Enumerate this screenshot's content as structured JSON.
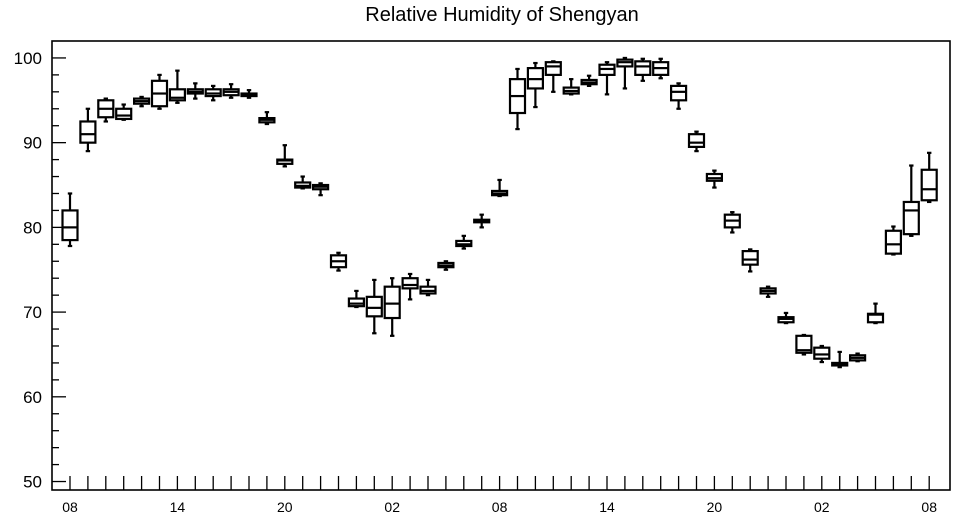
{
  "chart_data": {
    "type": "box",
    "title": "Relative Humidity of Shengyan",
    "xlabel": "",
    "ylabel": "",
    "ylim": [
      49,
      102
    ],
    "yticks": [
      50,
      60,
      70,
      80,
      90,
      100
    ],
    "x_tick_labels": [
      "08",
      "14",
      "20",
      "02",
      "08",
      "14",
      "20",
      "02",
      "08"
    ],
    "x_label_positions": [
      0,
      6,
      12,
      18,
      24,
      30,
      36,
      42,
      48
    ],
    "boxes": [
      {
        "x": 0,
        "min": 77.8,
        "q1": 78.5,
        "median": 80.0,
        "q3": 82.0,
        "max": 84.0
      },
      {
        "x": 1,
        "min": 89.0,
        "q1": 90.0,
        "median": 91.0,
        "q3": 92.5,
        "max": 94.0
      },
      {
        "x": 2,
        "min": 92.5,
        "q1": 93.0,
        "median": 94.0,
        "q3": 95.0,
        "max": 95.2
      },
      {
        "x": 3,
        "min": 92.7,
        "q1": 92.8,
        "median": 93.2,
        "q3": 94.0,
        "max": 94.5
      },
      {
        "x": 4,
        "min": 94.3,
        "q1": 94.6,
        "median": 94.9,
        "q3": 95.2,
        "max": 95.4
      },
      {
        "x": 5,
        "min": 94.0,
        "q1": 94.3,
        "median": 95.8,
        "q3": 97.3,
        "max": 98.0
      },
      {
        "x": 6,
        "min": 94.7,
        "q1": 95.0,
        "median": 95.3,
        "q3": 96.3,
        "max": 98.5
      },
      {
        "x": 7,
        "min": 95.2,
        "q1": 95.8,
        "median": 96.0,
        "q3": 96.3,
        "max": 97.0
      },
      {
        "x": 8,
        "min": 95.0,
        "q1": 95.5,
        "median": 95.8,
        "q3": 96.3,
        "max": 96.7
      },
      {
        "x": 9,
        "min": 95.3,
        "q1": 95.6,
        "median": 96.0,
        "q3": 96.3,
        "max": 96.9
      },
      {
        "x": 10,
        "min": 95.3,
        "q1": 95.5,
        "median": 95.6,
        "q3": 95.8,
        "max": 96.2
      },
      {
        "x": 11,
        "min": 92.2,
        "q1": 92.4,
        "median": 92.7,
        "q3": 92.9,
        "max": 93.6
      },
      {
        "x": 12,
        "min": 87.2,
        "q1": 87.5,
        "median": 87.9,
        "q3": 88.0,
        "max": 89.7
      },
      {
        "x": 13,
        "min": 84.6,
        "q1": 84.7,
        "median": 84.9,
        "q3": 85.3,
        "max": 86.0
      },
      {
        "x": 14,
        "min": 83.8,
        "q1": 84.5,
        "median": 84.8,
        "q3": 85.0,
        "max": 85.2
      },
      {
        "x": 15,
        "min": 74.9,
        "q1": 75.3,
        "median": 76.0,
        "q3": 76.7,
        "max": 77.0
      },
      {
        "x": 16,
        "min": 70.6,
        "q1": 70.7,
        "median": 71.0,
        "q3": 71.6,
        "max": 72.5
      },
      {
        "x": 17,
        "min": 67.5,
        "q1": 69.5,
        "median": 70.5,
        "q3": 71.8,
        "max": 73.8
      },
      {
        "x": 18,
        "min": 67.2,
        "q1": 69.3,
        "median": 71.0,
        "q3": 73.0,
        "max": 74.0
      },
      {
        "x": 19,
        "min": 71.5,
        "q1": 72.8,
        "median": 73.2,
        "q3": 74.0,
        "max": 74.5
      },
      {
        "x": 20,
        "min": 72.0,
        "q1": 72.2,
        "median": 72.5,
        "q3": 73.0,
        "max": 73.8
      },
      {
        "x": 21,
        "min": 75.0,
        "q1": 75.3,
        "median": 75.5,
        "q3": 75.8,
        "max": 76.0
      },
      {
        "x": 22,
        "min": 77.5,
        "q1": 77.8,
        "median": 78.0,
        "q3": 78.4,
        "max": 79.0
      },
      {
        "x": 23,
        "min": 80.0,
        "q1": 80.6,
        "median": 80.8,
        "q3": 80.9,
        "max": 81.5
      },
      {
        "x": 24,
        "min": 83.7,
        "q1": 83.8,
        "median": 84.0,
        "q3": 84.3,
        "max": 85.6
      },
      {
        "x": 25,
        "min": 91.6,
        "q1": 93.5,
        "median": 95.5,
        "q3": 97.5,
        "max": 98.7
      },
      {
        "x": 26,
        "min": 94.2,
        "q1": 96.4,
        "median": 97.5,
        "q3": 98.8,
        "max": 99.4
      },
      {
        "x": 27,
        "min": 96.0,
        "q1": 98.0,
        "median": 99.0,
        "q3": 99.5,
        "max": 99.6
      },
      {
        "x": 28,
        "min": 95.7,
        "q1": 95.8,
        "median": 96.1,
        "q3": 96.5,
        "max": 97.5
      },
      {
        "x": 29,
        "min": 96.7,
        "q1": 96.9,
        "median": 97.1,
        "q3": 97.4,
        "max": 97.9
      },
      {
        "x": 30,
        "min": 95.7,
        "q1": 98.0,
        "median": 98.7,
        "q3": 99.2,
        "max": 99.5
      },
      {
        "x": 31,
        "min": 96.4,
        "q1": 99.0,
        "median": 99.5,
        "q3": 99.8,
        "max": 100.0
      },
      {
        "x": 32,
        "min": 97.3,
        "q1": 98.0,
        "median": 99.0,
        "q3": 99.6,
        "max": 99.9
      },
      {
        "x": 33,
        "min": 97.6,
        "q1": 98.0,
        "median": 98.8,
        "q3": 99.5,
        "max": 99.9
      },
      {
        "x": 34,
        "min": 94.0,
        "q1": 95.0,
        "median": 96.0,
        "q3": 96.7,
        "max": 97.0
      },
      {
        "x": 35,
        "min": 89.0,
        "q1": 89.5,
        "median": 90.0,
        "q3": 91.0,
        "max": 91.3
      },
      {
        "x": 36,
        "min": 84.7,
        "q1": 85.5,
        "median": 85.8,
        "q3": 86.3,
        "max": 86.7
      },
      {
        "x": 37,
        "min": 79.4,
        "q1": 80.0,
        "median": 80.8,
        "q3": 81.5,
        "max": 81.8
      },
      {
        "x": 38,
        "min": 74.8,
        "q1": 75.6,
        "median": 76.2,
        "q3": 77.2,
        "max": 77.4
      },
      {
        "x": 39,
        "min": 71.8,
        "q1": 72.2,
        "median": 72.5,
        "q3": 72.8,
        "max": 73.0
      },
      {
        "x": 40,
        "min": 68.7,
        "q1": 68.8,
        "median": 69.2,
        "q3": 69.4,
        "max": 69.9
      },
      {
        "x": 41,
        "min": 65.0,
        "q1": 65.2,
        "median": 65.5,
        "q3": 67.2,
        "max": 67.3
      },
      {
        "x": 42,
        "min": 64.1,
        "q1": 64.5,
        "median": 65.0,
        "q3": 65.8,
        "max": 66.0
      },
      {
        "x": 43,
        "min": 63.5,
        "q1": 63.7,
        "median": 63.8,
        "q3": 64.0,
        "max": 65.3
      },
      {
        "x": 44,
        "min": 64.2,
        "q1": 64.3,
        "median": 64.6,
        "q3": 64.9,
        "max": 65.1
      },
      {
        "x": 45,
        "min": 68.7,
        "q1": 68.8,
        "median": 69.7,
        "q3": 69.8,
        "max": 71.0
      },
      {
        "x": 46,
        "min": 76.8,
        "q1": 76.9,
        "median": 78.0,
        "q3": 79.6,
        "max": 80.1
      },
      {
        "x": 47,
        "min": 79.0,
        "q1": 79.2,
        "median": 82.0,
        "q3": 83.0,
        "max": 87.3
      },
      {
        "x": 48,
        "min": 83.0,
        "q1": 83.2,
        "median": 84.5,
        "q3": 86.8,
        "max": 88.8
      }
    ]
  }
}
